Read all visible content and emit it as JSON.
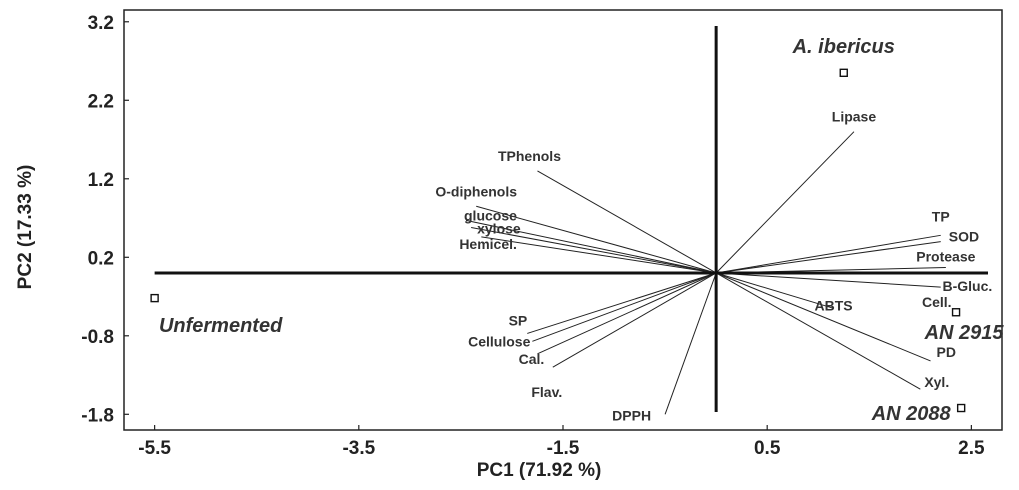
{
  "chart_data": {
    "type": "scatter",
    "title": "",
    "xlabel": "PC1 (71.92 %)",
    "ylabel": "PC2 (17.33 %)",
    "xlim": [
      -5.8,
      2.8
    ],
    "ylim": [
      -2.0,
      3.35
    ],
    "x_ticks": [
      {
        "value": -5.5,
        "label": "-5.5"
      },
      {
        "value": -3.5,
        "label": "-3.5"
      },
      {
        "value": -1.5,
        "label": "-1.5"
      },
      {
        "value": 0.5,
        "label": "0.5"
      },
      {
        "value": 2.5,
        "label": "2.5"
      }
    ],
    "y_ticks": [
      {
        "value": 3.2,
        "label": "3.2"
      },
      {
        "value": 2.2,
        "label": "2.2"
      },
      {
        "value": 1.2,
        "label": "1.2"
      },
      {
        "value": 0.2,
        "label": "0.2"
      },
      {
        "value": -0.8,
        "label": "-0.8"
      },
      {
        "value": -1.8,
        "label": "-1.8"
      }
    ],
    "grid": false,
    "origin": [
      0,
      0
    ],
    "observations": [
      {
        "name": "A. ibericus",
        "x": 1.25,
        "y": 2.55
      },
      {
        "name": "Unfermented",
        "x": -5.5,
        "y": -0.32
      },
      {
        "name": "AN 2915",
        "x": 2.35,
        "y": -0.5
      },
      {
        "name": "AN 2088",
        "x": 2.4,
        "y": -1.72
      }
    ],
    "variables": [
      {
        "name": "Lipase",
        "x": 1.35,
        "y": 1.8
      },
      {
        "name": "TPhenols",
        "x": -1.75,
        "y": 1.3
      },
      {
        "name": "O-diphenols",
        "x": -2.35,
        "y": 0.85
      },
      {
        "name": "glucose",
        "x": -2.45,
        "y": 0.67
      },
      {
        "name": "xylose",
        "x": -2.4,
        "y": 0.58
      },
      {
        "name": "Hemicel.",
        "x": -2.3,
        "y": 0.46
      },
      {
        "name": "TP",
        "x": 2.2,
        "y": 0.48
      },
      {
        "name": "SOD",
        "x": 2.2,
        "y": 0.4
      },
      {
        "name": "Protease",
        "x": 2.25,
        "y": 0.07
      },
      {
        "name": "B-Gluc.",
        "x": 2.5,
        "y": 0.0
      },
      {
        "name": "Cell.",
        "x": 2.2,
        "y": -0.18
      },
      {
        "name": "ABTS",
        "x": 1.15,
        "y": -0.45
      },
      {
        "name": "PD",
        "x": 2.1,
        "y": -1.12
      },
      {
        "name": "Xyl.",
        "x": 2.0,
        "y": -1.48
      },
      {
        "name": "SP",
        "x": -1.85,
        "y": -0.77
      },
      {
        "name": "Cellulose",
        "x": -1.8,
        "y": -0.87
      },
      {
        "name": "Cal.",
        "x": -1.75,
        "y": -1.03
      },
      {
        "name": "Flav.",
        "x": -1.6,
        "y": -1.2
      },
      {
        "name": "DPPH",
        "x": -0.5,
        "y": -1.8
      }
    ]
  }
}
